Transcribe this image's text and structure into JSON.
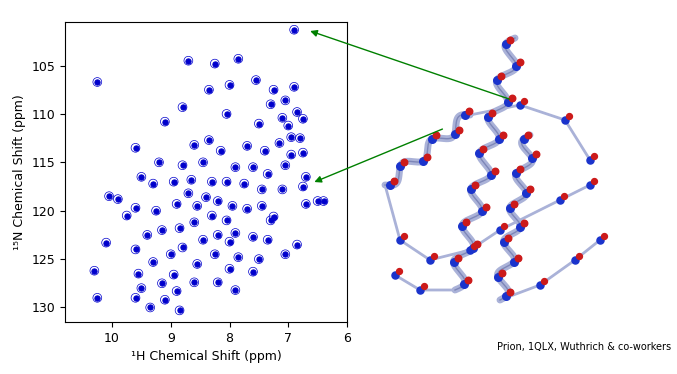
{
  "chart_data": {
    "type": "scatter",
    "x_label": "¹H Chemical Shift (ppm)",
    "y_label": "¹⁵N Chemical Shift (ppm)",
    "caption": "Prion, 1QLX, Wuthrich & co-workers",
    "color": "#0000cc",
    "marker": "o",
    "grid": false,
    "x": [
      6.9,
      8.7,
      8.25,
      7.85,
      7.55,
      10.25,
      8.35,
      8.0,
      7.25,
      6.9,
      8.8,
      7.3,
      7.05,
      6.85,
      6.75,
      7.1,
      9.1,
      8.05,
      7.5,
      7.0,
      6.95,
      6.8,
      7.15,
      6.95,
      6.75,
      7.05,
      8.35,
      8.6,
      9.6,
      8.15,
      7.7,
      7.4,
      9.2,
      8.8,
      8.45,
      7.9,
      7.6,
      7.35,
      9.5,
      10.05,
      9.9,
      9.3,
      8.95,
      8.65,
      8.3,
      8.05,
      7.75,
      7.45,
      7.1,
      6.75,
      6.5,
      6.4,
      6.7,
      9.6,
      9.25,
      8.9,
      8.55,
      8.4,
      8.2,
      7.95,
      7.7,
      7.45,
      7.25,
      8.3,
      8.05,
      8.6,
      8.85,
      9.15,
      9.4,
      9.75,
      10.1,
      7.9,
      8.2,
      8.45,
      7.6,
      7.35,
      7.05,
      6.85,
      8.8,
      9.6,
      9.0,
      8.25,
      7.85,
      8.55,
      9.3,
      10.3,
      8.0,
      7.6,
      8.95,
      8.6,
      8.2,
      9.15,
      9.5,
      8.9,
      7.9,
      10.25,
      9.6,
      9.1,
      8.85,
      9.35,
      7.5,
      8.0,
      8.7,
      9.55,
      6.7,
      7.3
    ],
    "values": [
      101.3,
      104.5,
      104.8,
      104.3,
      106.5,
      106.7,
      107.5,
      107.0,
      107.5,
      107.2,
      109.3,
      109.0,
      108.6,
      109.8,
      110.5,
      110.4,
      110.8,
      110.0,
      111.0,
      111.2,
      112.4,
      112.5,
      113.0,
      114.2,
      114.0,
      115.3,
      112.7,
      113.2,
      113.5,
      113.8,
      113.3,
      113.8,
      115.0,
      115.3,
      115.0,
      115.5,
      115.5,
      116.2,
      116.5,
      118.5,
      118.8,
      117.2,
      117.0,
      116.8,
      117.0,
      117.0,
      117.2,
      117.8,
      117.8,
      117.5,
      119.0,
      119.0,
      119.3,
      119.7,
      120.0,
      119.3,
      119.5,
      118.6,
      119.0,
      119.5,
      119.8,
      119.5,
      120.6,
      120.5,
      121.0,
      121.2,
      121.8,
      122.0,
      122.5,
      120.5,
      123.3,
      122.3,
      122.5,
      123.0,
      122.7,
      123.0,
      124.5,
      123.5,
      123.8,
      124.0,
      124.5,
      124.5,
      124.8,
      125.5,
      125.3,
      126.2,
      126.0,
      126.3,
      126.6,
      127.4,
      127.4,
      127.5,
      128.0,
      128.3,
      128.2,
      129.0,
      129.0,
      129.2,
      130.3,
      130.0,
      125.0,
      123.2,
      118.2,
      126.5,
      116.5,
      121.0
    ],
    "xlim": [
      10.8,
      6.0
    ],
    "xticks": [
      10,
      9,
      8,
      7,
      6
    ],
    "ylim": [
      131.5,
      100.5
    ],
    "yticks": [
      105,
      110,
      115,
      120,
      125,
      130
    ]
  }
}
